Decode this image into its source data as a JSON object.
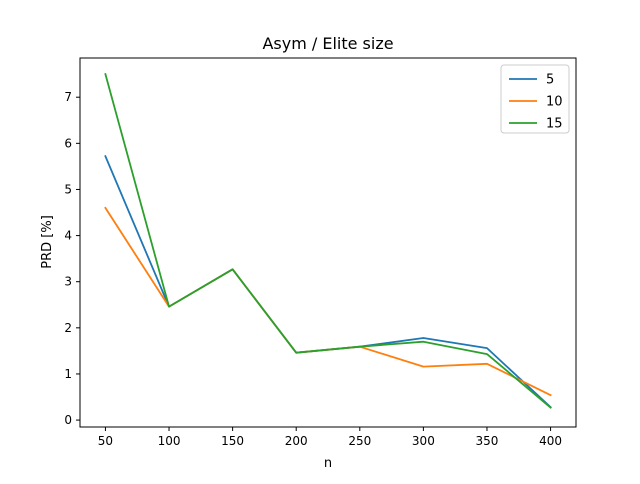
{
  "chart_data": {
    "type": "line",
    "title": "Asym / Elite size",
    "xlabel": "n",
    "ylabel": "PRD [%]",
    "x": [
      50,
      100,
      150,
      200,
      250,
      300,
      350,
      400
    ],
    "xlim": [
      30,
      420
    ],
    "ylim": [
      -0.15,
      7.85
    ],
    "xticks": [
      50,
      100,
      150,
      200,
      250,
      300,
      350,
      400
    ],
    "yticks": [
      0,
      1,
      2,
      3,
      4,
      5,
      6,
      7
    ],
    "grid": false,
    "legend_position": "top-right",
    "series": [
      {
        "name": "5",
        "color": "#1f77b4",
        "values": [
          5.72,
          2.46,
          3.27,
          1.46,
          1.59,
          1.78,
          1.56,
          0.28
        ]
      },
      {
        "name": "10",
        "color": "#ff7f0e",
        "values": [
          4.6,
          2.46,
          3.27,
          1.46,
          1.59,
          1.16,
          1.22,
          0.54
        ]
      },
      {
        "name": "15",
        "color": "#2ca02c",
        "values": [
          7.5,
          2.46,
          3.27,
          1.46,
          1.59,
          1.7,
          1.43,
          0.27
        ]
      }
    ]
  }
}
